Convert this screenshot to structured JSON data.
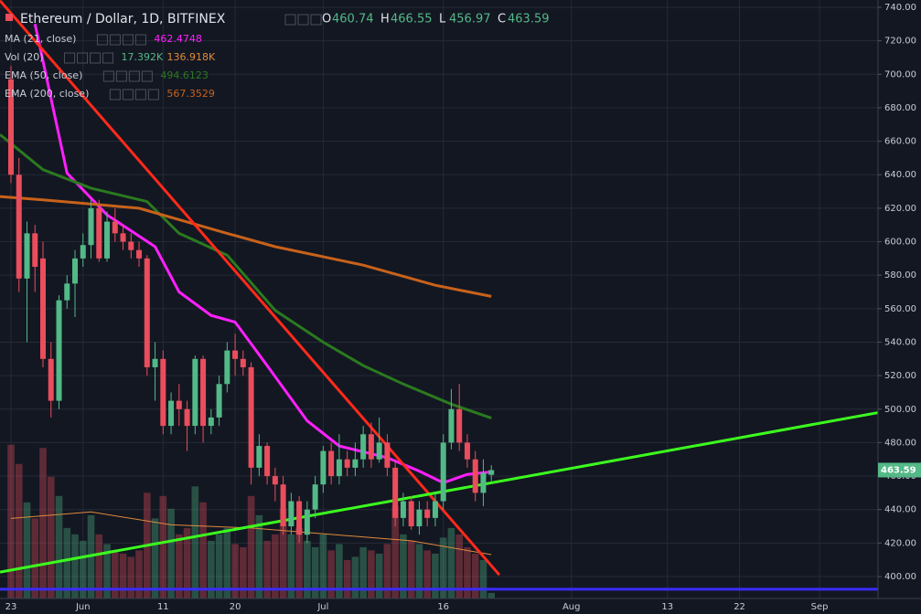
{
  "chart_data": {
    "type": "candlestick",
    "title": "Ethereum / Dollar, 1D, BITFINEX",
    "ohlc_labels": [
      "O",
      "H",
      "L",
      "C"
    ],
    "up_color": "#53b987",
    "down_color": "#eb4d5c",
    "grid": true,
    "xlim": [
      -1.37,
      108.3
    ],
    "xticks": [
      {
        "value": 0,
        "label": "23"
      },
      {
        "value": 9,
        "label": "Jun"
      },
      {
        "value": 19,
        "label": "11"
      },
      {
        "value": 28,
        "label": "20"
      },
      {
        "value": 39,
        "label": "Jul"
      },
      {
        "value": 54,
        "label": "16"
      },
      {
        "value": 70,
        "label": "Aug"
      },
      {
        "value": 82,
        "label": "13"
      },
      {
        "value": 91,
        "label": "22"
      },
      {
        "value": 101,
        "label": "Sep"
      }
    ],
    "ylim": [
      400,
      740
    ],
    "yticks": [
      {
        "value": 400,
        "label": "400.00"
      },
      {
        "value": 420,
        "label": "420.00"
      },
      {
        "value": 440,
        "label": "440.00"
      },
      {
        "value": 460,
        "label": "460.00"
      },
      {
        "value": 480,
        "label": "480.00"
      },
      {
        "value": 500,
        "label": "500.00"
      },
      {
        "value": 520,
        "label": "520.00"
      },
      {
        "value": 540,
        "label": "540.00"
      },
      {
        "value": 560,
        "label": "560.00"
      },
      {
        "value": 580,
        "label": "580.00"
      },
      {
        "value": 600,
        "label": "600.00"
      },
      {
        "value": 620,
        "label": "620.00"
      },
      {
        "value": 640,
        "label": "640.00"
      },
      {
        "value": 660,
        "label": "660.00"
      },
      {
        "value": 680,
        "label": "680.00"
      },
      {
        "value": 700,
        "label": "700.00"
      },
      {
        "value": 720,
        "label": "720.00"
      },
      {
        "value": 740,
        "label": "740.00"
      }
    ],
    "x": [
      0,
      1,
      2,
      3,
      4,
      5,
      6,
      7,
      8,
      9,
      10,
      11,
      12,
      13,
      14,
      15,
      16,
      17,
      18,
      19,
      20,
      21,
      22,
      23,
      24,
      25,
      26,
      27,
      28,
      29,
      30,
      31,
      32,
      33,
      34,
      35,
      36,
      37,
      38,
      39,
      40,
      41,
      42,
      43,
      44,
      45,
      46,
      47,
      48,
      49,
      50,
      51,
      52,
      53,
      54,
      55,
      56,
      57,
      58,
      59,
      60
    ],
    "open": [
      697,
      640,
      578,
      605,
      590,
      530,
      505,
      565,
      575,
      590,
      598,
      620,
      590,
      612,
      605,
      600,
      595,
      590,
      525,
      530,
      490,
      505,
      500,
      490,
      530,
      490,
      495,
      515,
      535,
      530,
      525,
      465,
      478,
      460,
      455,
      430,
      445,
      425,
      440,
      455,
      475,
      460,
      470,
      465,
      470,
      485,
      470,
      480,
      465,
      435,
      445,
      430,
      440,
      435,
      445,
      480,
      500,
      480,
      470,
      450,
      460.74
    ],
    "high": [
      705,
      650,
      612,
      610,
      600,
      540,
      568,
      580,
      595,
      605,
      625,
      625,
      618,
      620,
      610,
      605,
      600,
      592,
      540,
      535,
      510,
      515,
      505,
      532,
      532,
      500,
      520,
      540,
      545,
      535,
      528,
      485,
      480,
      465,
      460,
      450,
      448,
      445,
      460,
      478,
      480,
      485,
      475,
      480,
      490,
      492,
      495,
      485,
      470,
      450,
      448,
      445,
      445,
      450,
      485,
      512,
      515,
      485,
      475,
      470,
      466.55
    ],
    "low": [
      635,
      570,
      540,
      570,
      525,
      495,
      500,
      560,
      555,
      585,
      590,
      588,
      588,
      600,
      595,
      590,
      585,
      520,
      505,
      485,
      485,
      490,
      475,
      485,
      480,
      485,
      490,
      510,
      520,
      520,
      455,
      460,
      455,
      445,
      425,
      425,
      420,
      420,
      435,
      450,
      455,
      455,
      460,
      460,
      465,
      465,
      468,
      460,
      430,
      430,
      428,
      425,
      430,
      430,
      440,
      476,
      475,
      465,
      445,
      442,
      456.97
    ],
    "close": [
      640,
      578,
      605,
      585,
      530,
      505,
      565,
      575,
      590,
      598,
      620,
      590,
      612,
      605,
      600,
      595,
      590,
      525,
      530,
      490,
      505,
      500,
      490,
      530,
      490,
      495,
      515,
      535,
      530,
      525,
      465,
      478,
      460,
      455,
      430,
      445,
      425,
      440,
      455,
      475,
      460,
      470,
      465,
      470,
      485,
      470,
      480,
      465,
      435,
      445,
      430,
      440,
      435,
      445,
      480,
      500,
      480,
      470,
      450,
      462,
      463.59
    ],
    "volume": [
      480000,
      420000,
      300000,
      250000,
      470000,
      380000,
      320000,
      220000,
      200000,
      180000,
      260000,
      200000,
      170000,
      150000,
      140000,
      130000,
      150000,
      330000,
      250000,
      320000,
      280000,
      200000,
      220000,
      350000,
      300000,
      180000,
      200000,
      220000,
      170000,
      160000,
      320000,
      260000,
      180000,
      200000,
      280000,
      200000,
      220000,
      180000,
      160000,
      200000,
      150000,
      170000,
      120000,
      130000,
      160000,
      150000,
      140000,
      170000,
      290000,
      200000,
      180000,
      170000,
      150000,
      140000,
      190000,
      220000,
      200000,
      160000,
      140000,
      120000,
      17392
    ],
    "volume_ma": {
      "x": [
        0,
        10,
        20,
        30,
        40,
        50,
        60
      ],
      "values": [
        250000,
        270000,
        230000,
        220000,
        200000,
        180000,
        136918
      ],
      "color": "#e08a3c"
    },
    "volume_legend": {
      "name": "Vol (20)",
      "value_labels": [
        "17.392K",
        "136.918K"
      ]
    },
    "indicators": [
      {
        "name": "MA (21, close)",
        "color": "#ff1fff",
        "x": [
          3,
          7,
          12,
          18,
          21,
          25,
          28,
          32,
          37,
          41,
          47,
          51,
          54,
          57,
          60
        ],
        "values": [
          730,
          641,
          616,
          597,
          570,
          556,
          552,
          526,
          493,
          478,
          471,
          463,
          456,
          461,
          462.4748
        ]
      },
      {
        "name": "EMA (50, close)",
        "color": "#2b7a1f",
        "x": [
          -1.37,
          4,
          10,
          17,
          21,
          27,
          33,
          39,
          44,
          49,
          55,
          60
        ],
        "values": [
          664,
          643,
          632,
          624,
          605,
          592,
          559,
          540,
          526,
          515,
          503,
          494.6123
        ]
      },
      {
        "name": "EMA (200, close)",
        "color": "#c8621a",
        "x": [
          -1.37,
          4,
          16,
          27,
          33,
          44,
          53,
          60
        ],
        "values": [
          627,
          625,
          620,
          605,
          597,
          586,
          574,
          567.3529
        ]
      }
    ],
    "drawings": [
      {
        "color": "#ff2a1a",
        "x": [
          -1.37,
          61
        ],
        "values": [
          744,
          401
        ]
      },
      {
        "color": "#3cff1e",
        "x": [
          -1.37,
          113.7
        ],
        "values": [
          402.7,
          502.6
        ]
      },
      {
        "color": "#3b2cff",
        "x": [
          -1.37,
          108.3
        ],
        "values": [
          392.4,
          392.4
        ]
      }
    ]
  }
}
